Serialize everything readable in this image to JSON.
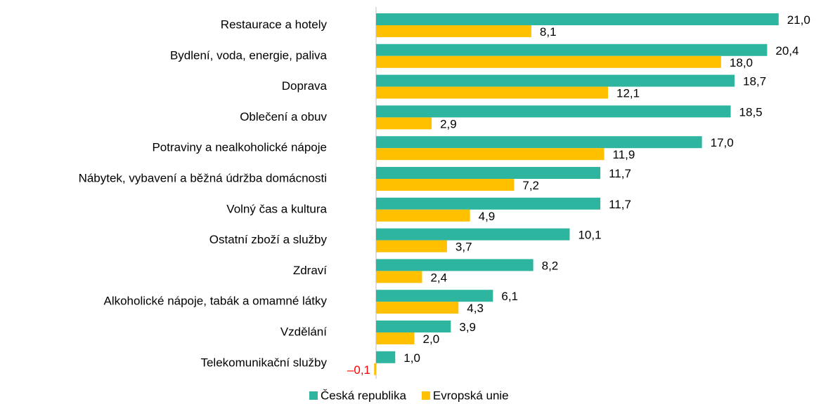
{
  "chart_data": {
    "type": "hbar",
    "categories": [
      "Restaurace a hotely",
      "Bydlení, voda, energie, paliva",
      "Doprava",
      "Oblečení a obuv",
      "Potraviny a nealkoholické nápoje",
      "Nábytek, vybavení a běžná údržba domácnosti",
      "Volný čas a kultura",
      "Ostatní zboží a služby",
      "Zdraví",
      "Alkoholické nápoje, tabák a omamné látky",
      "Vzdělání",
      "Telekomunikační služby"
    ],
    "series": [
      {
        "name": "Česká republika",
        "color": "#2db5a0",
        "values": [
          21.0,
          20.4,
          18.7,
          18.5,
          17.0,
          11.7,
          11.7,
          10.1,
          8.2,
          6.1,
          3.9,
          1.0
        ],
        "value_labels": [
          "21,0",
          "20,4",
          "18,7",
          "18,5",
          "17,0",
          "11,7",
          "11,7",
          "10,1",
          "8,2",
          "6,1",
          "3,9",
          "1,0"
        ]
      },
      {
        "name": "Evropská unie",
        "color": "#ffc000",
        "values": [
          8.1,
          18.0,
          12.1,
          2.9,
          11.9,
          7.2,
          4.9,
          3.7,
          2.4,
          4.3,
          2.0,
          -0.1
        ],
        "value_labels": [
          "8,1",
          "18,0",
          "12,1",
          "2,9",
          "11,9",
          "7,2",
          "4,9",
          "3,7",
          "2,4",
          "4,3",
          "2,0",
          "–0,1"
        ]
      }
    ],
    "xlim": [
      0,
      22
    ],
    "negative_label_color": "#ff0000",
    "legend": "bottom"
  }
}
